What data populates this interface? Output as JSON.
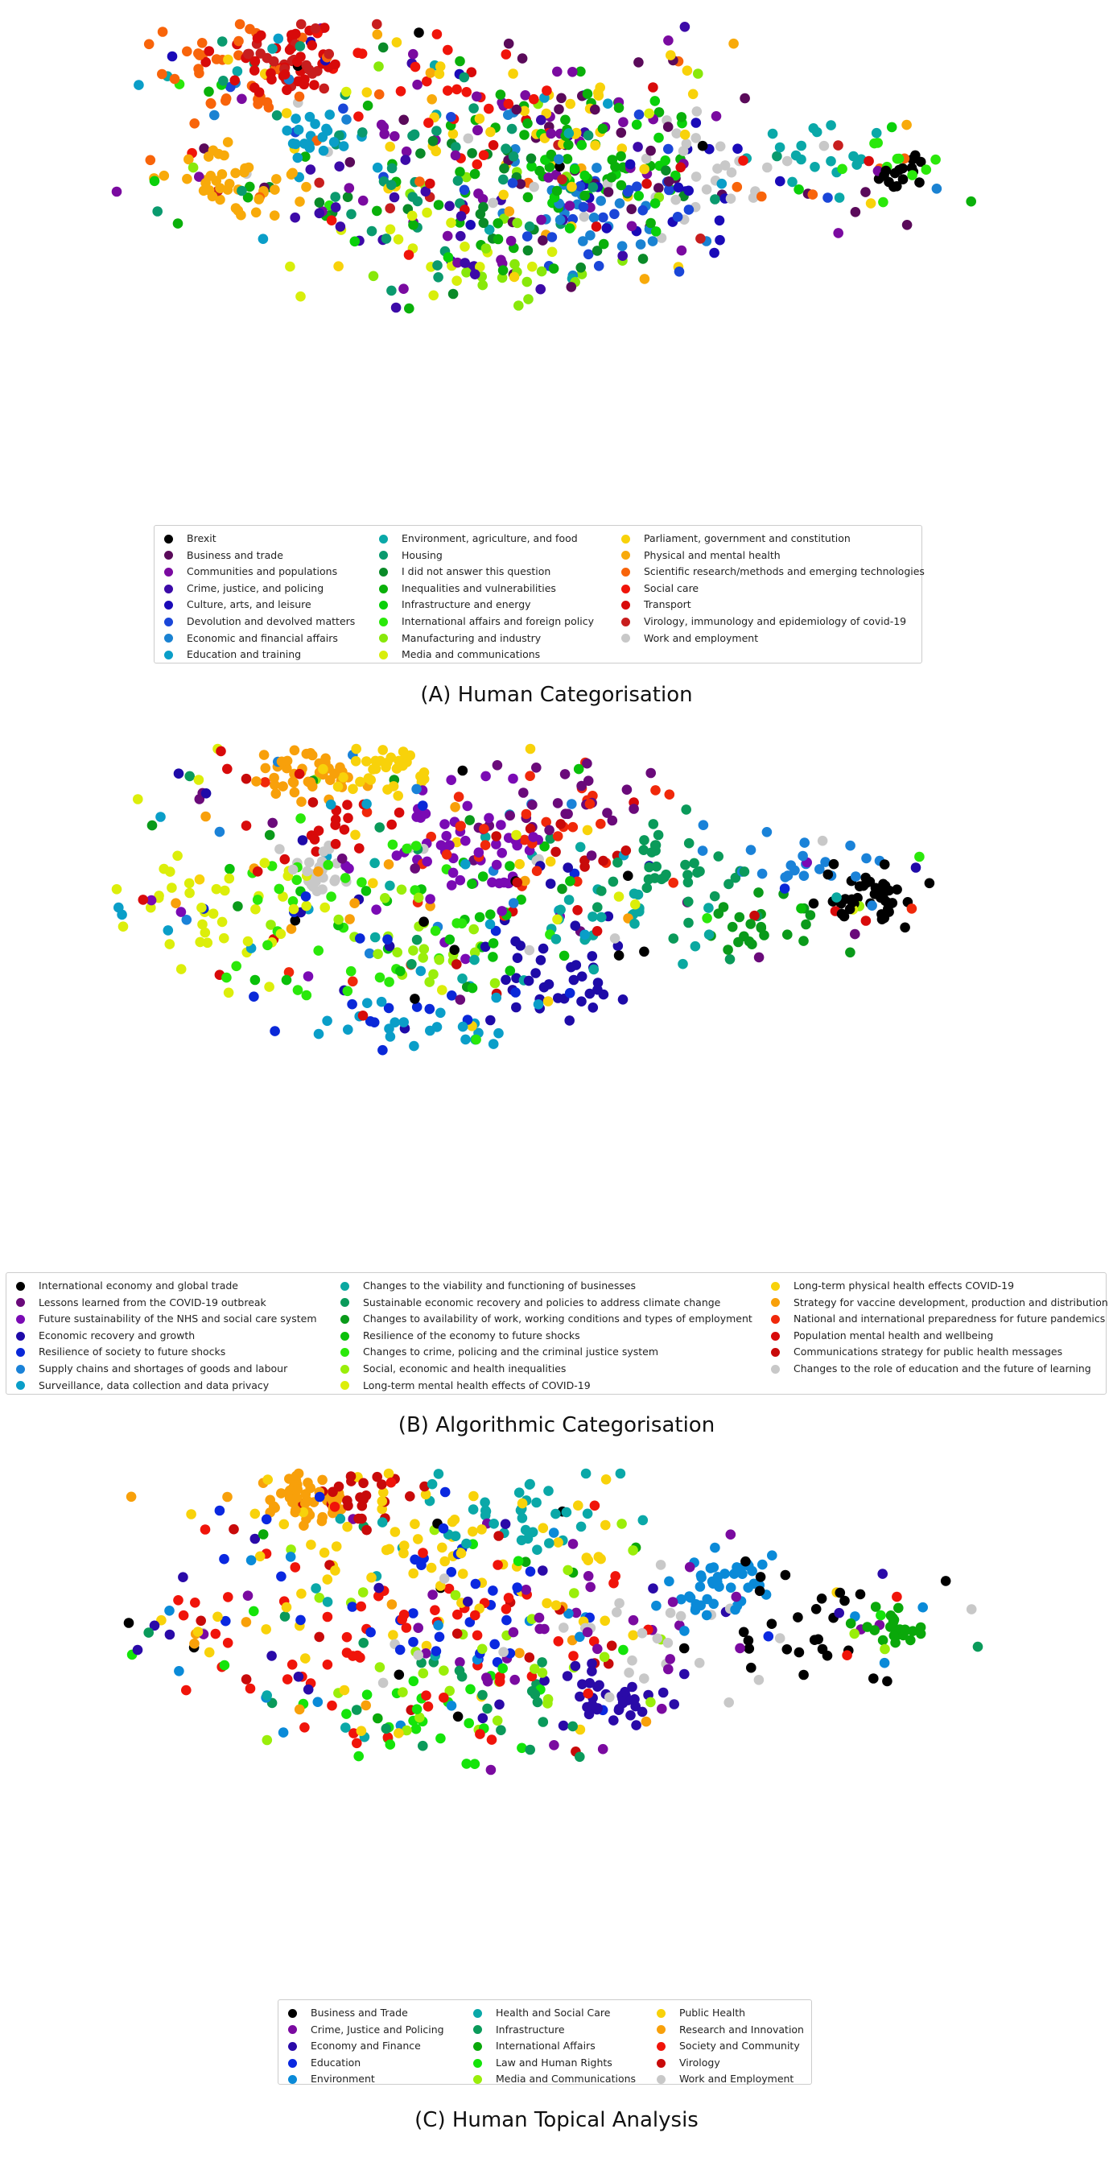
{
  "chart_data": [
    {
      "type": "scatter",
      "title": "(A) Human Categorisation",
      "axes": "none",
      "grid": false,
      "legend_position": "bottom-center",
      "categories": [
        {
          "name": "Brexit",
          "color": "#000000"
        },
        {
          "name": "Business and trade",
          "color": "#5a0a5a"
        },
        {
          "name": "Communities and populations",
          "color": "#7a0aa0"
        },
        {
          "name": "Crime, justice, and policing",
          "color": "#3c0aa8"
        },
        {
          "name": "Culture, arts, and leisure",
          "color": "#1a0ab8"
        },
        {
          "name": "Devolution and devolved matters",
          "color": "#1a46d8"
        },
        {
          "name": "Economic and financial affairs",
          "color": "#1a82d2"
        },
        {
          "name": "Education and training",
          "color": "#0a9ec8"
        },
        {
          "name": "Environment, agriculture, and food",
          "color": "#0aa8a8"
        },
        {
          "name": "Housing",
          "color": "#0a9a6e"
        },
        {
          "name": "I did not answer this question",
          "color": "#0a8a28"
        },
        {
          "name": "Inequalities and vulnerabilities",
          "color": "#0ab00a"
        },
        {
          "name": "Infrastructure and energy",
          "color": "#0ad00a"
        },
        {
          "name": "International affairs and foreign policy",
          "color": "#2ae80a"
        },
        {
          "name": "Manufacturing and industry",
          "color": "#88e80a"
        },
        {
          "name": "Media and communications",
          "color": "#d8ee0a"
        },
        {
          "name": "Parliament, government and constitution",
          "color": "#f8d20a"
        },
        {
          "name": "Physical and mental health",
          "color": "#f8aa0a"
        },
        {
          "name": "Scientific research/methods and emerging technologies",
          "color": "#f8640a"
        },
        {
          "name": "Social care",
          "color": "#f0140a"
        },
        {
          "name": "Transport",
          "color": "#d80a0a"
        },
        {
          "name": "Virology, immunology and epidemiology of covid-19",
          "color": "#c81e1e"
        },
        {
          "name": "Work and employment",
          "color": "#c8c8c8"
        }
      ]
    },
    {
      "type": "scatter",
      "title": "(B) Algorithmic Categorisation",
      "axes": "none",
      "grid": false,
      "legend_position": "bottom-center",
      "categories": [
        {
          "name": "International economy and global trade",
          "color": "#000000"
        },
        {
          "name": "Lessons learned from the COVID-19 outbreak",
          "color": "#6a0a7a"
        },
        {
          "name": "Future sustainability of the NHS and social care system",
          "color": "#7a0ab4"
        },
        {
          "name": "Economic recovery and growth",
          "color": "#1e0aa8"
        },
        {
          "name": "Resilience of society to future shocks",
          "color": "#0a28d8"
        },
        {
          "name": "Supply chains and shortages of goods and labour",
          "color": "#1a82d8"
        },
        {
          "name": "Surveillance, data collection and data privacy",
          "color": "#0a9ec8"
        },
        {
          "name": "Changes to the viability and functioning of businesses",
          "color": "#0aa8a0"
        },
        {
          "name": "Sustainable economic recovery and policies to address climate change",
          "color": "#0a9a5a"
        },
        {
          "name": "Changes to availability of work, working conditions and types of employment",
          "color": "#0a9a1a"
        },
        {
          "name": "Resilience of the economy to future shocks",
          "color": "#0ac00a"
        },
        {
          "name": "Changes to crime, policing and the criminal justice system",
          "color": "#2ae80a"
        },
        {
          "name": "Social, economic and health inequalities",
          "color": "#9aee0a"
        },
        {
          "name": "Long-term mental health effects of COVID-19",
          "color": "#dcee0a"
        },
        {
          "name": "Long-term physical health effects COVID-19",
          "color": "#f8d20a"
        },
        {
          "name": "Strategy for vaccine development, production and distribution",
          "color": "#f8a00a"
        },
        {
          "name": "National and international preparedness for future pandemics",
          "color": "#f0280a"
        },
        {
          "name": "Population mental health and wellbeing",
          "color": "#d80a0a"
        },
        {
          "name": "Communications strategy for public health messages",
          "color": "#c80a0a"
        },
        {
          "name": "Changes to the role of education and the future of learning",
          "color": "#c8c8c8"
        }
      ]
    },
    {
      "type": "scatter",
      "title": "(C) Human Topical Analysis",
      "axes": "none",
      "grid": false,
      "legend_position": "bottom-center",
      "categories": [
        {
          "name": "Business and Trade",
          "color": "#000000"
        },
        {
          "name": "Crime, Justice and Policing",
          "color": "#7a0aa0"
        },
        {
          "name": "Economy and Finance",
          "color": "#2a0aa8"
        },
        {
          "name": "Education",
          "color": "#0a28e0"
        },
        {
          "name": "Environment",
          "color": "#0a8ad8"
        },
        {
          "name": "Health and Social Care",
          "color": "#0aa8a8"
        },
        {
          "name": "Infrastructure",
          "color": "#0a9a5a"
        },
        {
          "name": "International Affairs",
          "color": "#0aa80a"
        },
        {
          "name": "Law and Human Rights",
          "color": "#14e40a"
        },
        {
          "name": "Media and Communications",
          "color": "#9aee0a"
        },
        {
          "name": "Public Health",
          "color": "#f8d20a"
        },
        {
          "name": "Research and Innovation",
          "color": "#f8a00a"
        },
        {
          "name": "Society and Community",
          "color": "#f0140a"
        },
        {
          "name": "Virology",
          "color": "#c80a0a"
        },
        {
          "name": "Work and Employment",
          "color": "#c8c8c8"
        }
      ]
    }
  ]
}
